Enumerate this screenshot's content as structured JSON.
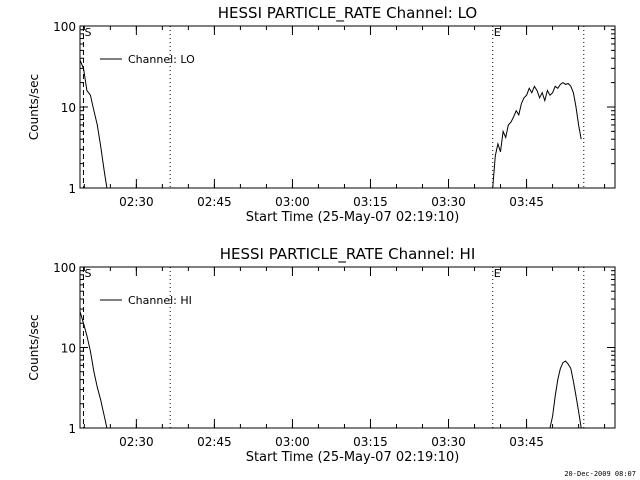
{
  "footer": "20-Dec-2009 08:07",
  "chart_data": [
    {
      "type": "line",
      "title": "HESSI PARTICLE_RATE Channel: LO",
      "xlabel": "Start Time (25-May-07 02:19:10)",
      "ylabel": "Counts/sec",
      "y_scale": "log",
      "ylim": [
        1,
        100
      ],
      "xlim": [
        "02:19:10",
        "04:02:00"
      ],
      "x_tick_labels": [
        "02:30",
        "02:45",
        "03:00",
        "03:15",
        "03:30",
        "03:45"
      ],
      "y_tick_labels": [
        "1",
        "10",
        "100"
      ],
      "legend": {
        "label": "Channel: LO",
        "placement": "top-left"
      },
      "markers": [
        {
          "label": "S",
          "time": "02:19:50",
          "style": "dashed"
        },
        {
          "label": "",
          "time": "02:36:30",
          "style": "dotted"
        },
        {
          "label": "E",
          "time": "03:38:30",
          "style": "dotted"
        },
        {
          "label": "",
          "time": "03:56:00",
          "style": "dotted"
        }
      ],
      "series": [
        {
          "name": "Channel: LO",
          "segments": [
            {
              "x": [
                "02:19:10",
                "02:19:50",
                "02:20:30",
                "02:21:10",
                "02:21:50",
                "02:22:30",
                "02:23:10",
                "02:23:50",
                "02:24:20"
              ],
              "y": [
                38,
                30,
                16,
                14,
                9,
                6,
                3.2,
                1.6,
                1
              ]
            },
            {
              "x": [
                "03:38:30",
                "03:39:00",
                "03:39:30",
                "03:40:00",
                "03:40:30",
                "03:41:00",
                "03:41:30",
                "03:42:00",
                "03:42:30",
                "03:43:00",
                "03:43:30",
                "03:44:00",
                "03:44:30",
                "03:45:00",
                "03:45:30",
                "03:46:00",
                "03:46:30",
                "03:47:00",
                "03:47:30",
                "03:48:00",
                "03:48:30",
                "03:49:00",
                "03:49:30",
                "03:50:00",
                "03:50:30",
                "03:51:00",
                "03:51:30",
                "03:52:00",
                "03:52:30",
                "03:53:00",
                "03:53:30",
                "03:54:00",
                "03:54:30",
                "03:55:00",
                "03:55:30"
              ],
              "y": [
                1,
                2.5,
                3.5,
                2.8,
                5,
                4.2,
                6,
                6.5,
                7.5,
                9,
                8,
                11,
                13,
                14,
                17,
                15,
                18,
                16,
                13,
                15,
                12,
                16,
                14,
                15,
                18,
                17,
                19,
                20,
                19,
                19.5,
                18,
                15,
                10,
                6,
                4
              ]
            }
          ]
        }
      ]
    },
    {
      "type": "line",
      "title": "HESSI PARTICLE_RATE Channel: HI",
      "xlabel": "Start Time (25-May-07 02:19:10)",
      "ylabel": "Counts/sec",
      "y_scale": "log",
      "ylim": [
        1,
        100
      ],
      "xlim": [
        "02:19:10",
        "04:02:00"
      ],
      "x_tick_labels": [
        "02:30",
        "02:45",
        "03:00",
        "03:15",
        "03:30",
        "03:45"
      ],
      "y_tick_labels": [
        "1",
        "10",
        "100"
      ],
      "legend": {
        "label": "Channel: HI",
        "placement": "top-left"
      },
      "markers": [
        {
          "label": "S",
          "time": "02:19:50",
          "style": "dashed"
        },
        {
          "label": "",
          "time": "02:36:30",
          "style": "dotted"
        },
        {
          "label": "E",
          "time": "03:38:30",
          "style": "dotted"
        },
        {
          "label": "",
          "time": "03:56:00",
          "style": "dotted"
        }
      ],
      "series": [
        {
          "name": "Channel: HI",
          "segments": [
            {
              "x": [
                "02:19:10",
                "02:19:50",
                "02:20:30",
                "02:21:10",
                "02:21:50",
                "02:22:30",
                "02:23:10",
                "02:23:50",
                "02:24:20"
              ],
              "y": [
                28,
                20,
                14,
                9,
                5,
                3.2,
                2.2,
                1.4,
                1
              ]
            },
            {
              "x": [
                "03:49:30",
                "03:50:00",
                "03:50:30",
                "03:51:00",
                "03:51:30",
                "03:52:00",
                "03:52:30",
                "03:53:00",
                "03:53:30",
                "03:54:00",
                "03:54:30",
                "03:55:00",
                "03:55:30"
              ],
              "y": [
                1,
                1.4,
                2.5,
                4,
                5.5,
                6.5,
                6.8,
                6.2,
                5.5,
                3.8,
                2.5,
                1.6,
                1
              ]
            }
          ]
        }
      ]
    }
  ]
}
